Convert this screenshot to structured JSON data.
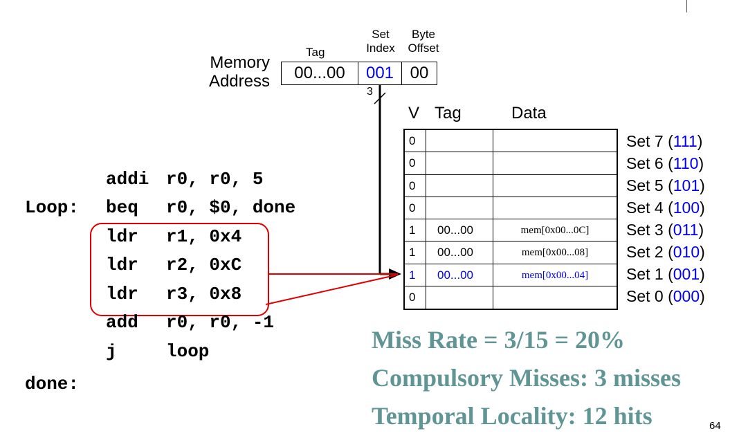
{
  "address": {
    "label_line1": "Memory",
    "label_line2": "Address",
    "tag_header": "Tag",
    "set_header_line1": "Set",
    "set_header_line2": "Index",
    "offset_header_line1": "Byte",
    "offset_header_line2": "Offset",
    "tag_value": "00...00",
    "set_value": "001",
    "offset_value": "00",
    "bus_width": "3"
  },
  "code": {
    "lines": [
      {
        "label": "",
        "op": "addi",
        "args": "r0, r0, 5"
      },
      {
        "label": "Loop:",
        "op": "beq",
        "args": "r0, $0, done"
      },
      {
        "label": "",
        "op": "ldr",
        "args": "r1, 0x4"
      },
      {
        "label": "",
        "op": "ldr",
        "args": "r2, 0xC"
      },
      {
        "label": "",
        "op": "ldr",
        "args": "r3, 0x8"
      },
      {
        "label": "",
        "op": "add",
        "args": "r0, r0, -1"
      },
      {
        "label": "",
        "op": "j",
        "args": "loop"
      },
      {
        "label": "done:",
        "op": "",
        "args": ""
      }
    ]
  },
  "cache": {
    "headers": {
      "v": "V",
      "tag": "Tag",
      "data": "Data"
    },
    "rows": [
      {
        "v": "0",
        "tag": "",
        "data": "",
        "set": "Set 7 (",
        "bits": "111",
        "close": ")"
      },
      {
        "v": "0",
        "tag": "",
        "data": "",
        "set": "Set 6 (",
        "bits": "110",
        "close": ")"
      },
      {
        "v": "0",
        "tag": "",
        "data": "",
        "set": "Set 5 (",
        "bits": "101",
        "close": ")"
      },
      {
        "v": "0",
        "tag": "",
        "data": "",
        "set": "Set 4 (",
        "bits": "100",
        "close": ")"
      },
      {
        "v": "1",
        "tag": "00...00",
        "data": "mem[0x00...0C]",
        "set": "Set 3 (",
        "bits": "011",
        "close": ")"
      },
      {
        "v": "1",
        "tag": "00...00",
        "data": "mem[0x00...08]",
        "set": "Set 2 (",
        "bits": "010",
        "close": ")"
      },
      {
        "v": "1",
        "tag": "00...00",
        "data": "mem[0x00...04]",
        "set": "Set 1 (",
        "bits": "001",
        "close": ")"
      },
      {
        "v": "0",
        "tag": "",
        "data": "",
        "set": "Set 0 (",
        "bits": "000",
        "close": ")"
      }
    ]
  },
  "stats": {
    "miss_rate": "Miss Rate = 3/15 = 20%",
    "compulsory": "Compulsory Misses: 3 misses",
    "temporal": "Temporal Locality: 12 hits"
  },
  "page_number": "64",
  "colors": {
    "accent_blue": "#0000ee",
    "highlight_red": "#e00000",
    "stats_teal": "#5f9595"
  }
}
